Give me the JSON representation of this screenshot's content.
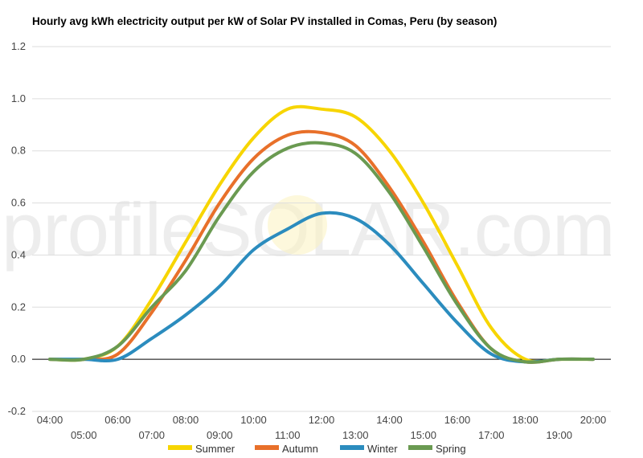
{
  "chart_data": {
    "type": "line",
    "title": "Hourly avg kWh electricity output per kW of Solar PV installed in Comas, Peru (by season)",
    "xlabel": "",
    "ylabel": "",
    "ylim": [
      -0.2,
      1.2
    ],
    "yticks": [
      "-0.2",
      "0.0",
      "0.2",
      "0.4",
      "0.6",
      "0.8",
      "1.0",
      "1.2"
    ],
    "xtick_labels_top": [
      "04:00",
      "06:00",
      "08:00",
      "10:00",
      "12:00",
      "14:00",
      "16:00",
      "18:00",
      "20:00"
    ],
    "xtick_labels_bottom": [
      "05:00",
      "07:00",
      "09:00",
      "11:00",
      "13:00",
      "15:00",
      "17:00",
      "19:00"
    ],
    "x": [
      4,
      5,
      6,
      7,
      8,
      9,
      10,
      11,
      12,
      13,
      14,
      15,
      16,
      17,
      18,
      19,
      20
    ],
    "grid": true,
    "legend_position": "bottom",
    "watermark": "profileSOLAR.com",
    "series": [
      {
        "name": "Summer",
        "color": "#f7d500",
        "values": [
          0,
          0,
          0.05,
          0.23,
          0.45,
          0.67,
          0.85,
          0.96,
          0.96,
          0.93,
          0.8,
          0.6,
          0.36,
          0.12,
          0.0,
          0,
          0
        ]
      },
      {
        "name": "Autumn",
        "color": "#e8702a",
        "values": [
          0,
          0,
          0.02,
          0.18,
          0.38,
          0.6,
          0.77,
          0.86,
          0.87,
          0.82,
          0.66,
          0.45,
          0.22,
          0.04,
          -0.01,
          0,
          0
        ]
      },
      {
        "name": "Winter",
        "color": "#2b8cbe",
        "values": [
          0,
          0,
          0.0,
          0.08,
          0.17,
          0.28,
          0.42,
          0.5,
          0.56,
          0.54,
          0.44,
          0.29,
          0.14,
          0.02,
          -0.01,
          0,
          0
        ]
      },
      {
        "name": "Spring",
        "color": "#6a9a51",
        "values": [
          0,
          0,
          0.05,
          0.2,
          0.34,
          0.55,
          0.72,
          0.81,
          0.83,
          0.79,
          0.64,
          0.43,
          0.21,
          0.04,
          -0.01,
          0,
          0
        ]
      }
    ]
  }
}
